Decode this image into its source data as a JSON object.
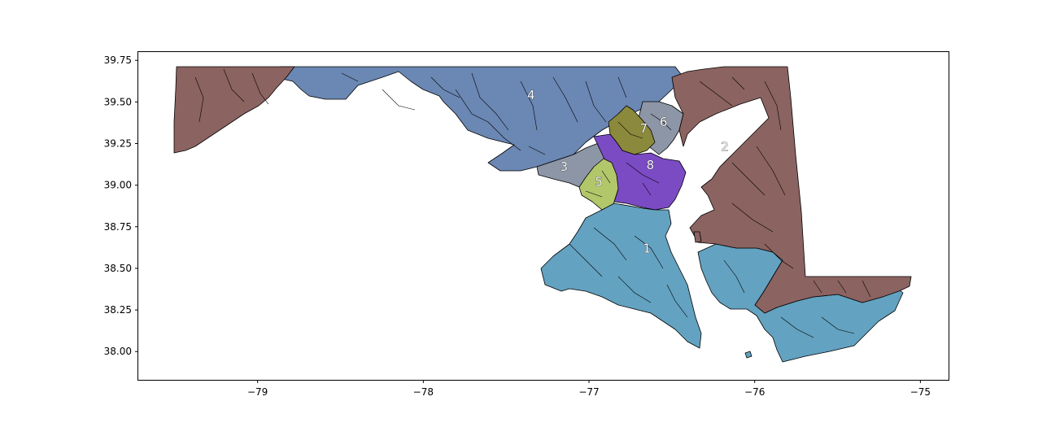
{
  "chart_data": {
    "type": "map",
    "x_axis": {
      "range": [
        -79.72,
        -74.83
      ],
      "ticks": [
        -79,
        -78,
        -77,
        -76,
        -75
      ],
      "tick_labels": [
        "−79",
        "−78",
        "−77",
        "−76",
        "−75"
      ]
    },
    "y_axis": {
      "range": [
        37.83,
        39.8
      ],
      "ticks": [
        38.0,
        38.25,
        38.5,
        38.75,
        39.0,
        39.25,
        39.5,
        39.75
      ],
      "tick_labels": [
        "38.00",
        "38.25",
        "38.50",
        "38.75",
        "39.00",
        "39.25",
        "39.50",
        "39.75"
      ]
    },
    "grid": false,
    "districts": [
      {
        "id": "1",
        "color": "#63a2c0",
        "label_lon": -76.65,
        "label_lat": 38.62
      },
      {
        "id": "2",
        "color": "#8b6361",
        "label_lon": -76.18,
        "label_lat": 39.23
      },
      {
        "id": "3",
        "color": "#8d96a6",
        "label_lon": -77.15,
        "label_lat": 39.11
      },
      {
        "id": "4",
        "color": "#6b87b3",
        "label_lon": -77.35,
        "label_lat": 39.54
      },
      {
        "id": "5",
        "color": "#b2c66a",
        "label_lon": -76.94,
        "label_lat": 39.02
      },
      {
        "id": "6",
        "color": "#8d96a6",
        "label_lon": -76.55,
        "label_lat": 39.38
      },
      {
        "id": "7",
        "color": "#8b8a3c",
        "label_lon": -76.67,
        "label_lat": 39.34
      },
      {
        "id": "8",
        "color": "#7b4bc4",
        "label_lon": -76.63,
        "label_lat": 39.12
      }
    ]
  }
}
